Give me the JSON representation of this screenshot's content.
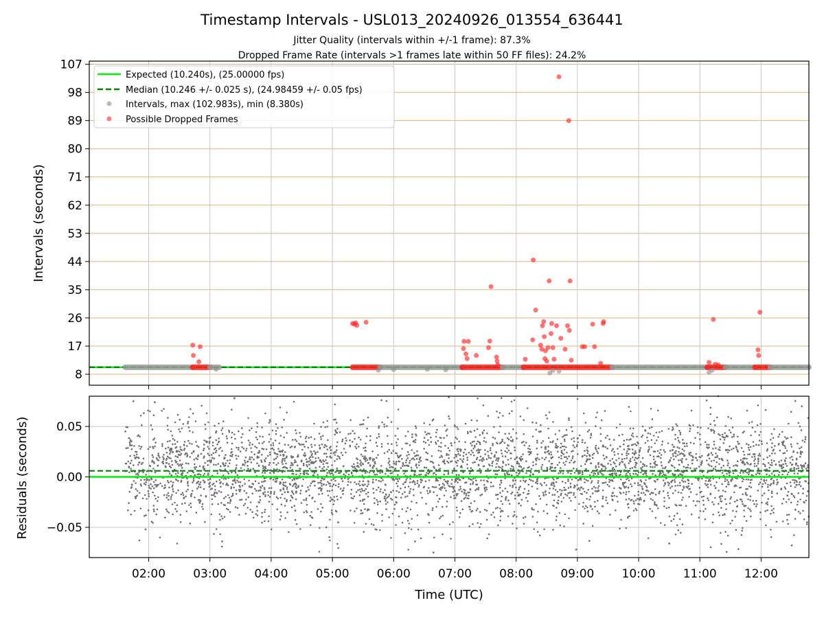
{
  "chart_data": [
    {
      "type": "scatter",
      "title": "Timestamp Intervals - USL013_20240926_013554_636441",
      "subtitle_1": "Jitter Quality (intervals within +/-1 frame): 87.3%",
      "subtitle_2": "Dropped Frame Rate (intervals >1 frames late within 50 FF files): 24.2%",
      "ylabel": "Intervals (seconds)",
      "xlabel": "",
      "x_range_hours": [
        1.03,
        12.78
      ],
      "ylim": [
        4.5,
        108
      ],
      "y_ticks": [
        8,
        17,
        26,
        35,
        44,
        53,
        62,
        71,
        80,
        89,
        98,
        107
      ],
      "grid": true,
      "legend_placement": "upper-left",
      "legend": [
        {
          "label": "Expected (10.240s), (25.00000 fps)",
          "kind": "solid-line",
          "color": "#00ee00"
        },
        {
          "label": "Median (10.246 +/- 0.025 s), (24.98459 +/- 0.05 fps)",
          "kind": "dashed-line",
          "color": "#007f00"
        },
        {
          "label": "Intervals, max (102.983s), min (8.380s)",
          "kind": "marker",
          "color": "#8c8c8c"
        },
        {
          "label": "Possible Dropped Frames",
          "kind": "marker",
          "color": "#ff2a2a"
        }
      ],
      "expected_interval": 10.24,
      "median_interval": 10.246,
      "interval_band_segments": [
        {
          "x0": 1.62,
          "x1": 2.72,
          "kind": "normal"
        },
        {
          "x0": 2.72,
          "x1": 3.0,
          "kind": "dropped"
        },
        {
          "x0": 3.0,
          "x1": 3.15,
          "kind": "normal"
        },
        {
          "x0": 5.33,
          "x1": 5.78,
          "kind": "dropped"
        },
        {
          "x0": 5.78,
          "x1": 7.12,
          "kind": "normal"
        },
        {
          "x0": 7.12,
          "x1": 7.78,
          "kind": "dropped"
        },
        {
          "x0": 7.78,
          "x1": 8.12,
          "kind": "normal"
        },
        {
          "x0": 8.12,
          "x1": 9.57,
          "kind": "dropped"
        },
        {
          "x0": 9.57,
          "x1": 11.12,
          "kind": "normal"
        },
        {
          "x0": 11.12,
          "x1": 11.42,
          "kind": "dropped"
        },
        {
          "x0": 11.42,
          "x1": 11.9,
          "kind": "normal"
        },
        {
          "x0": 11.9,
          "x1": 12.15,
          "kind": "dropped"
        },
        {
          "x0": 12.15,
          "x1": 12.78,
          "kind": "normal"
        }
      ],
      "normal_points": [
        {
          "x": 5.75,
          "y": 9.3
        },
        {
          "x": 6.0,
          "y": 9.5
        },
        {
          "x": 6.55,
          "y": 9.6
        },
        {
          "x": 6.85,
          "y": 9.4
        },
        {
          "x": 8.55,
          "y": 8.4
        },
        {
          "x": 8.6,
          "y": 9.2
        },
        {
          "x": 8.7,
          "y": 9.0
        },
        {
          "x": 11.15,
          "y": 8.6
        },
        {
          "x": 11.2,
          "y": 9.3
        },
        {
          "x": 3.1,
          "y": 9.6
        }
      ],
      "dropped_points": [
        {
          "x": 2.72,
          "y": 17.3
        },
        {
          "x": 2.73,
          "y": 14.0
        },
        {
          "x": 2.82,
          "y": 12.0
        },
        {
          "x": 2.84,
          "y": 16.8
        },
        {
          "x": 5.33,
          "y": 24.2
        },
        {
          "x": 5.36,
          "y": 24.0
        },
        {
          "x": 5.4,
          "y": 23.6
        },
        {
          "x": 5.38,
          "y": 24.4
        },
        {
          "x": 5.55,
          "y": 24.6
        },
        {
          "x": 7.15,
          "y": 18.5
        },
        {
          "x": 7.14,
          "y": 16.2
        },
        {
          "x": 7.18,
          "y": 14.5
        },
        {
          "x": 7.22,
          "y": 18.5
        },
        {
          "x": 7.2,
          "y": 13.0
        },
        {
          "x": 7.35,
          "y": 14.0
        },
        {
          "x": 7.57,
          "y": 18.6
        },
        {
          "x": 7.55,
          "y": 16.5
        },
        {
          "x": 7.59,
          "y": 36.0
        },
        {
          "x": 7.68,
          "y": 13.5
        },
        {
          "x": 7.69,
          "y": 12.2
        },
        {
          "x": 7.7,
          "y": 11.0
        },
        {
          "x": 8.15,
          "y": 12.8
        },
        {
          "x": 8.28,
          "y": 44.5
        },
        {
          "x": 8.27,
          "y": 19.0
        },
        {
          "x": 8.32,
          "y": 28.5
        },
        {
          "x": 8.4,
          "y": 17.3
        },
        {
          "x": 8.42,
          "y": 16.0
        },
        {
          "x": 8.43,
          "y": 23.5
        },
        {
          "x": 8.45,
          "y": 24.8
        },
        {
          "x": 8.46,
          "y": 20.0
        },
        {
          "x": 8.48,
          "y": 15.5
        },
        {
          "x": 8.47,
          "y": 13.0
        },
        {
          "x": 8.5,
          "y": 12.2
        },
        {
          "x": 8.52,
          "y": 16.5
        },
        {
          "x": 8.54,
          "y": 37.8
        },
        {
          "x": 8.58,
          "y": 24.2
        },
        {
          "x": 8.57,
          "y": 21.0
        },
        {
          "x": 8.6,
          "y": 16.5
        },
        {
          "x": 8.62,
          "y": 12.8
        },
        {
          "x": 8.66,
          "y": 23.5
        },
        {
          "x": 8.7,
          "y": 103.0
        },
        {
          "x": 8.73,
          "y": 19.5
        },
        {
          "x": 8.8,
          "y": 16.0
        },
        {
          "x": 8.84,
          "y": 23.5
        },
        {
          "x": 8.86,
          "y": 89.0
        },
        {
          "x": 8.87,
          "y": 22.0
        },
        {
          "x": 8.88,
          "y": 37.8
        },
        {
          "x": 8.9,
          "y": 12.5
        },
        {
          "x": 9.08,
          "y": 16.8
        },
        {
          "x": 9.12,
          "y": 16.8
        },
        {
          "x": 9.25,
          "y": 24.0
        },
        {
          "x": 9.28,
          "y": 16.8
        },
        {
          "x": 9.38,
          "y": 11.5
        },
        {
          "x": 9.43,
          "y": 24.8
        },
        {
          "x": 9.42,
          "y": 24.2
        },
        {
          "x": 11.15,
          "y": 11.8
        },
        {
          "x": 11.22,
          "y": 25.5
        },
        {
          "x": 11.25,
          "y": 11.2
        },
        {
          "x": 11.3,
          "y": 11.0
        },
        {
          "x": 11.95,
          "y": 15.8
        },
        {
          "x": 11.96,
          "y": 14.0
        },
        {
          "x": 11.98,
          "y": 27.8
        }
      ]
    },
    {
      "type": "scatter",
      "ylabel": "Residuals (seconds)",
      "xlabel": "Time (UTC)",
      "x_range_hours": [
        1.03,
        12.78
      ],
      "ylim": [
        -0.08,
        0.08
      ],
      "y_ticks": [
        -0.05,
        0.0,
        0.05
      ],
      "y_tick_labels": [
        "−0.05",
        "0.00",
        "0.05"
      ],
      "x_ticks": [
        2,
        3,
        4,
        5,
        6,
        7,
        8,
        9,
        10,
        11,
        12
      ],
      "x_tick_labels": [
        "02:00",
        "03:00",
        "04:00",
        "05:00",
        "06:00",
        "07:00",
        "08:00",
        "09:00",
        "10:00",
        "11:00",
        "12:00"
      ],
      "grid": true,
      "expected_residual": 0.0,
      "median_residual": 0.006,
      "residual_spread_sigma": 0.025,
      "point_count_visible": 4000,
      "point_color": "#707070",
      "sample_points": [
        {
          "x": 1.62,
          "y": 0.045
        },
        {
          "x": 1.75,
          "y": 0.075
        },
        {
          "x": 1.95,
          "y": -0.052
        },
        {
          "x": 2.1,
          "y": 0.074
        },
        {
          "x": 3.2,
          "y": -0.064
        },
        {
          "x": 3.4,
          "y": 0.078
        },
        {
          "x": 4.9,
          "y": -0.05
        },
        {
          "x": 5.8,
          "y": 0.076
        },
        {
          "x": 6.35,
          "y": -0.064
        },
        {
          "x": 6.65,
          "y": -0.075
        },
        {
          "x": 6.9,
          "y": 0.079
        },
        {
          "x": 8.98,
          "y": -0.072
        },
        {
          "x": 10.5,
          "y": -0.066
        },
        {
          "x": 11.3,
          "y": 0.08
        },
        {
          "x": 12.5,
          "y": -0.068
        },
        {
          "x": 12.75,
          "y": -0.045
        }
      ]
    }
  ]
}
